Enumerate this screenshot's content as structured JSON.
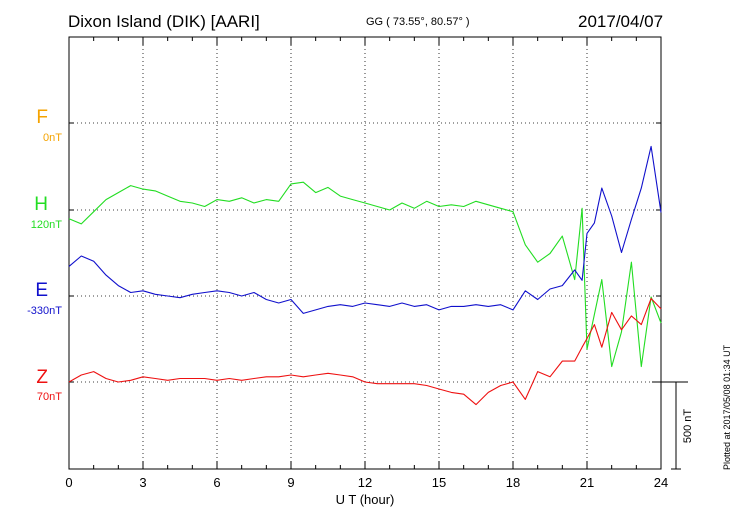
{
  "header": {
    "station": "Dixon Island (DIK)  [AARI]",
    "coords": "GG ( 73.55°,  80.57° )",
    "date": "2017/04/07"
  },
  "footer": {
    "plotted": "Plotted at 2017/05/08 01:34 UT"
  },
  "components": [
    {
      "name": "F",
      "baseline": "0nT",
      "color": "#f5a300"
    },
    {
      "name": "H",
      "baseline": "120nT",
      "color": "#22dd22"
    },
    {
      "name": "E",
      "baseline": "-330nT",
      "color": "#1010cc"
    },
    {
      "name": "Z",
      "baseline": "70nT",
      "color": "#ee1111"
    }
  ],
  "chart_data": {
    "type": "line",
    "xlabel": "U T (hour)",
    "xlim": [
      0,
      24
    ],
    "x_ticks": [
      "0",
      "3",
      "6",
      "9",
      "12",
      "15",
      "18",
      "21",
      "24"
    ],
    "scale_bar": "500 nT",
    "grid": true,
    "series": [
      {
        "name": "F",
        "baseline_nT": 0,
        "color": "#f5a300",
        "x": [],
        "y": []
      },
      {
        "name": "H",
        "baseline_nT": 120,
        "color": "#22dd22",
        "x": [
          0,
          0.5,
          1,
          1.5,
          2,
          2.5,
          3,
          3.5,
          4,
          4.5,
          5,
          5.5,
          6,
          6.5,
          7,
          7.5,
          8,
          8.5,
          9,
          9.5,
          10,
          10.5,
          11,
          11.5,
          12,
          12.5,
          13,
          13.5,
          14,
          14.5,
          15,
          15.5,
          16,
          16.5,
          17,
          17.5,
          18,
          18.5,
          19,
          19.5,
          20,
          20.5,
          20.8,
          21,
          21.3,
          21.6,
          22,
          22.4,
          22.8,
          23.2,
          23.6,
          24
        ],
        "y": [
          -50,
          -80,
          -10,
          60,
          100,
          140,
          120,
          110,
          80,
          50,
          40,
          20,
          60,
          50,
          70,
          40,
          60,
          50,
          150,
          160,
          100,
          130,
          80,
          60,
          40,
          20,
          0,
          40,
          10,
          50,
          20,
          30,
          20,
          50,
          30,
          10,
          -10,
          -200,
          -300,
          -250,
          -150,
          -400,
          10,
          -800,
          -600,
          -400,
          -900,
          -700,
          -300,
          -900,
          -500,
          -650
        ]
      },
      {
        "name": "E",
        "baseline_nT": -330,
        "color": "#1010cc",
        "x": [
          0,
          0.5,
          1,
          1.5,
          2,
          2.5,
          3,
          3.5,
          4,
          4.5,
          5,
          5.5,
          6,
          6.5,
          7,
          7.5,
          8,
          8.5,
          9,
          9.5,
          10,
          10.5,
          11,
          11.5,
          12,
          12.5,
          13,
          13.5,
          14,
          14.5,
          15,
          15.5,
          16,
          16.5,
          17,
          17.5,
          18,
          18.5,
          19,
          19.5,
          20,
          20.5,
          20.8,
          21,
          21.3,
          21.6,
          22,
          22.4,
          22.8,
          23.2,
          23.6,
          24
        ],
        "y": [
          170,
          230,
          200,
          120,
          60,
          20,
          30,
          10,
          0,
          -10,
          10,
          20,
          30,
          20,
          0,
          20,
          -20,
          -40,
          -20,
          -100,
          -80,
          -60,
          -50,
          -60,
          -40,
          -50,
          -60,
          -40,
          -60,
          -50,
          -80,
          -60,
          -60,
          -50,
          -60,
          -50,
          -80,
          30,
          -20,
          40,
          60,
          150,
          90,
          360,
          420,
          620,
          460,
          250,
          440,
          620,
          860,
          480
        ]
      },
      {
        "name": "Z",
        "baseline_nT": 70,
        "color": "#ee1111",
        "x": [
          0,
          0.5,
          1,
          1.5,
          2,
          2.5,
          3,
          3.5,
          4,
          4.5,
          5,
          5.5,
          6,
          6.5,
          7,
          7.5,
          8,
          8.5,
          9,
          9.5,
          10,
          10.5,
          11,
          11.5,
          12,
          12.5,
          13,
          13.5,
          14,
          14.5,
          15,
          15.5,
          16,
          16.5,
          17,
          17.5,
          18,
          18.5,
          19,
          19.5,
          20,
          20.5,
          20.8,
          21,
          21.3,
          21.6,
          22,
          22.4,
          22.8,
          23.2,
          23.6,
          24
        ],
        "y": [
          0,
          40,
          60,
          20,
          0,
          10,
          30,
          20,
          10,
          20,
          20,
          20,
          10,
          20,
          10,
          20,
          30,
          30,
          40,
          30,
          40,
          50,
          40,
          30,
          0,
          -10,
          -10,
          -10,
          -10,
          -20,
          -40,
          -60,
          -70,
          -130,
          -60,
          -20,
          0,
          -100,
          60,
          30,
          120,
          120,
          200,
          250,
          330,
          200,
          400,
          300,
          380,
          330,
          480,
          420
        ]
      }
    ]
  }
}
